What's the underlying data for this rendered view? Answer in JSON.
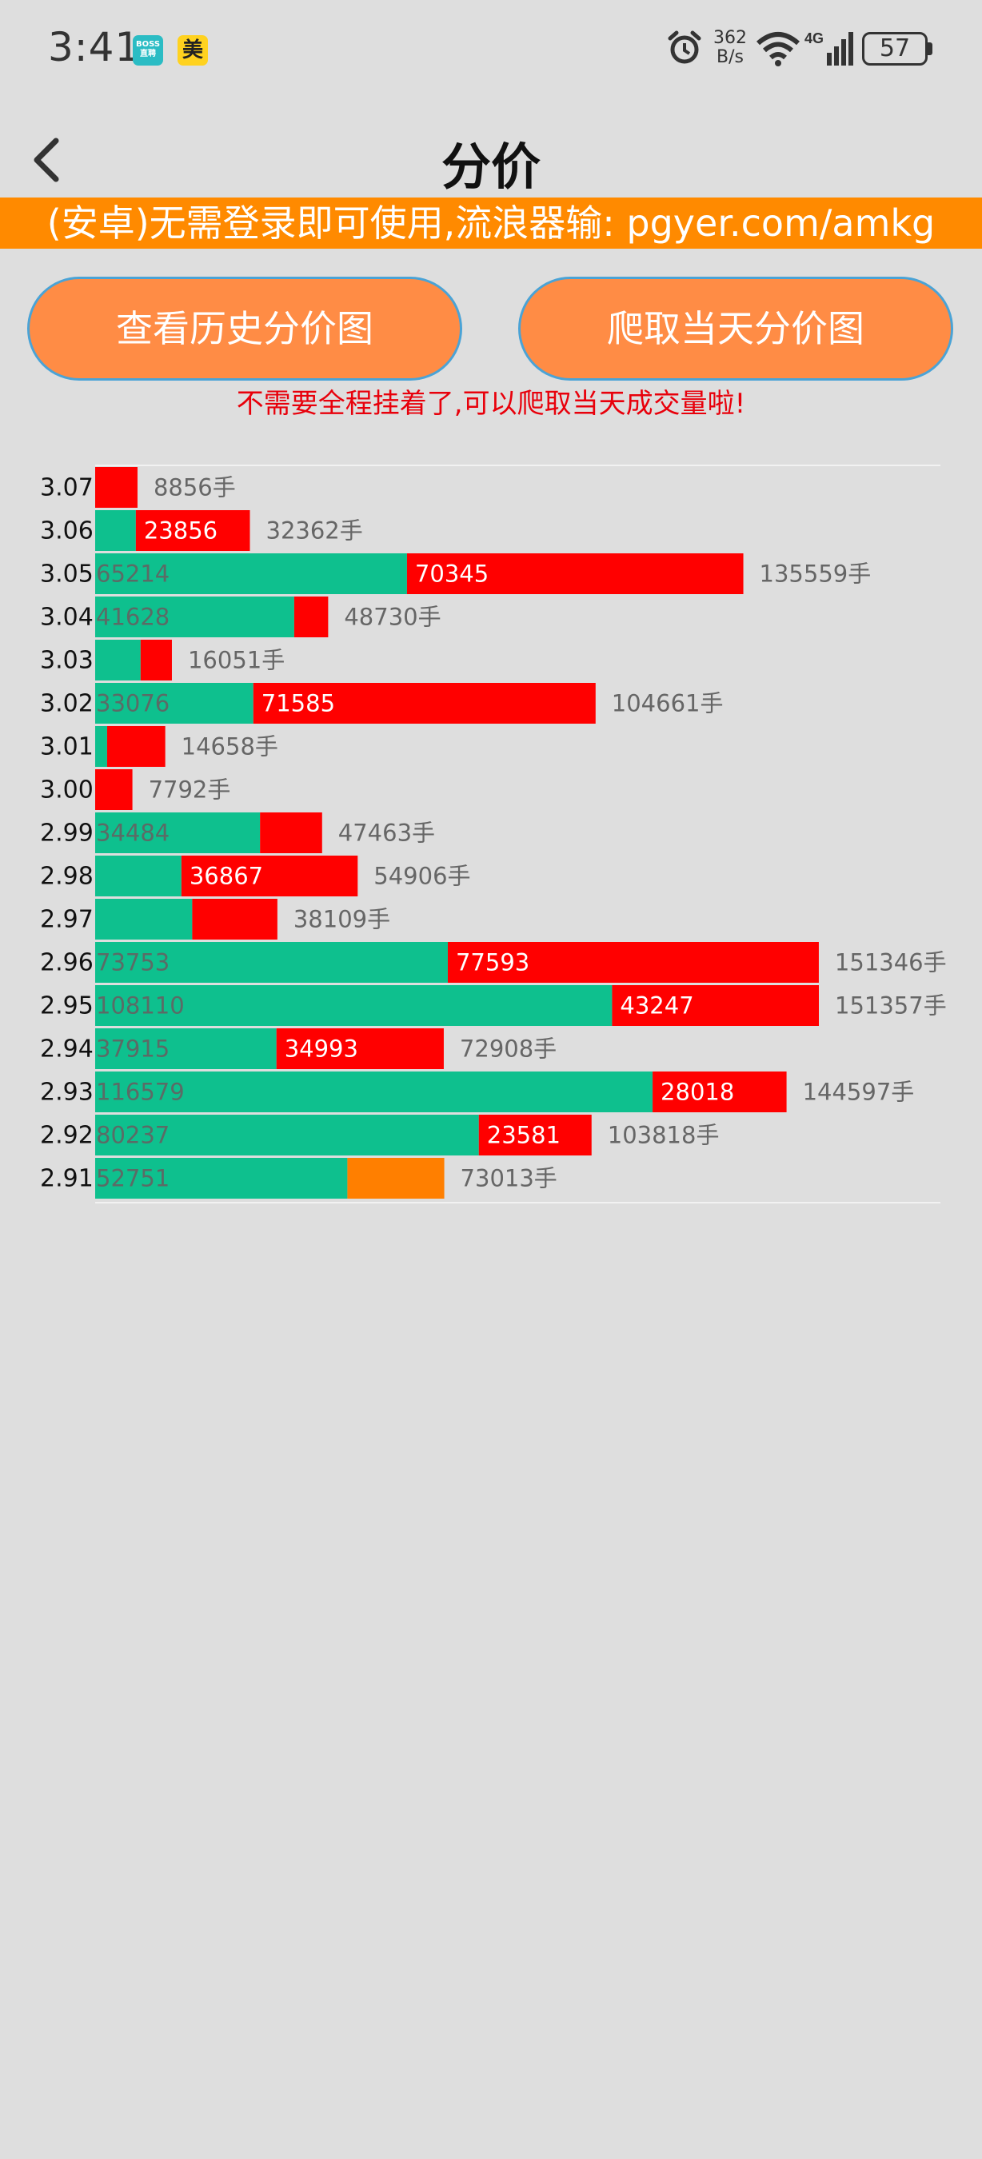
{
  "status_bar": {
    "time": "3:41",
    "app_icon_1": "BOSS 直聘",
    "app_icon_2": "美",
    "net_speed_value": "362",
    "net_speed_unit": "B/s",
    "network_type": "4G",
    "battery": "57",
    "icons": [
      "alarm-icon",
      "wifi-icon",
      "signal-icon",
      "battery-icon"
    ]
  },
  "header": {
    "title": "分价",
    "back_icon": "chevron-left-icon"
  },
  "banner": {
    "text": "(安卓)无需登录即可使用,流浪器输: pgyer.com/amkg"
  },
  "buttons": {
    "history": "查看历史分价图",
    "crawl_today": "爬取当天分价图"
  },
  "notice": "不需要全程挂着了,可以爬取当天成交量啦!",
  "colors": {
    "buy": "#0ec08e",
    "sell": "#ff0000",
    "neutral": "#ff7f00",
    "banner": "#ff8a00",
    "button": "#ff8c45",
    "notice": "#e8000b"
  },
  "chart_data": {
    "type": "bar",
    "orientation": "horizontal-stacked",
    "unit": "手",
    "series_colors": [
      "#0ec08e",
      "#ff0000"
    ],
    "categories": [
      "3.07",
      "3.06",
      "3.05",
      "3.04",
      "3.03",
      "3.02",
      "3.01",
      "3.00",
      "2.99",
      "2.98",
      "2.97",
      "2.96",
      "2.95",
      "2.94",
      "2.93",
      "2.92",
      "2.91"
    ],
    "rows": [
      {
        "price": "3.07",
        "green": 0,
        "green_label": "",
        "red": 8856,
        "red_label": "",
        "red_color": "#ff0000",
        "total": "8856手"
      },
      {
        "price": "3.06",
        "green": 8506,
        "green_label": "",
        "red": 23856,
        "red_label": "23856",
        "red_color": "#ff0000",
        "total": "32362手"
      },
      {
        "price": "3.05",
        "green": 65214,
        "green_label": "65214",
        "red": 70345,
        "red_label": "70345",
        "red_color": "#ff0000",
        "total": "135559手"
      },
      {
        "price": "3.04",
        "green": 41628,
        "green_label": "41628",
        "red": 7102,
        "red_label": "",
        "red_color": "#ff0000",
        "total": "48730手"
      },
      {
        "price": "3.03",
        "green": 9500,
        "green_label": "",
        "red": 6551,
        "red_label": "",
        "red_color": "#ff0000",
        "total": "16051手"
      },
      {
        "price": "3.02",
        "green": 33076,
        "green_label": "33076",
        "red": 71585,
        "red_label": "71585",
        "red_color": "#ff0000",
        "total": "104661手"
      },
      {
        "price": "3.01",
        "green": 2500,
        "green_label": "",
        "red": 12158,
        "red_label": "",
        "red_color": "#ff0000",
        "total": "14658手"
      },
      {
        "price": "3.00",
        "green": 0,
        "green_label": "",
        "red": 7792,
        "red_label": "",
        "red_color": "#ff0000",
        "total": "7792手"
      },
      {
        "price": "2.99",
        "green": 34484,
        "green_label": "34484",
        "red": 12979,
        "red_label": "",
        "red_color": "#ff0000",
        "total": "47463手"
      },
      {
        "price": "2.98",
        "green": 18039,
        "green_label": "",
        "red": 36867,
        "red_label": "36867",
        "red_color": "#ff0000",
        "total": "54906手"
      },
      {
        "price": "2.97",
        "green": 20300,
        "green_label": "",
        "red": 17809,
        "red_label": "",
        "red_color": "#ff0000",
        "total": "38109手"
      },
      {
        "price": "2.96",
        "green": 73753,
        "green_label": "73753",
        "red": 77593,
        "red_label": "77593",
        "red_color": "#ff0000",
        "total": "151346手"
      },
      {
        "price": "2.95",
        "green": 108110,
        "green_label": "108110",
        "red": 43247,
        "red_label": "43247",
        "red_color": "#ff0000",
        "total": "151357手"
      },
      {
        "price": "2.94",
        "green": 37915,
        "green_label": "37915",
        "red": 34993,
        "red_label": "34993",
        "red_color": "#ff0000",
        "total": "72908手"
      },
      {
        "price": "2.93",
        "green": 116579,
        "green_label": "116579",
        "red": 28018,
        "red_label": "28018",
        "red_color": "#ff0000",
        "total": "144597手"
      },
      {
        "price": "2.92",
        "green": 80237,
        "green_label": "80237",
        "red": 23581,
        "red_label": "23581",
        "red_color": "#ff0000",
        "total": "103818手"
      },
      {
        "price": "2.91",
        "green": 52751,
        "green_label": "52751",
        "red": 20262,
        "red_label": "",
        "red_color": "#ff7f00",
        "total": "73013手"
      }
    ],
    "xlim": [
      0,
      151357
    ],
    "grid": false,
    "legend": "none"
  }
}
